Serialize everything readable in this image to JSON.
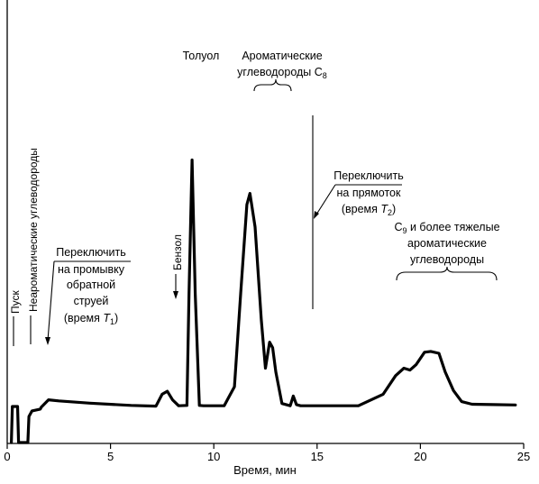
{
  "chart_data": {
    "type": "line",
    "title": "",
    "xlabel": "Время, мин",
    "ylabel": "",
    "xlim": [
      0,
      25
    ],
    "x_ticks": [
      "0",
      "5",
      "10",
      "15",
      "20",
      "25"
    ],
    "grid": false,
    "series": [
      {
        "x": [
          0.2,
          0.25,
          0.5,
          0.55,
          1.0,
          1.05,
          1.2,
          1.6,
          1.65,
          2.0,
          2.5,
          4.0,
          6.0,
          7.2,
          7.5,
          7.75,
          8.0,
          8.3,
          8.7,
          8.8,
          8.95,
          9.1,
          9.3,
          9.5,
          10.5,
          11.0,
          11.3,
          11.6,
          11.75,
          12.0,
          12.3,
          12.5,
          12.7,
          12.85,
          13.0,
          13.3,
          13.7,
          13.85,
          14.0,
          14.2,
          15.0,
          17.0,
          18.2,
          18.8,
          19.2,
          19.5,
          19.8,
          20.2,
          20.5,
          20.9,
          21.2,
          21.6,
          22.0,
          22.5,
          23.5,
          24.6
        ],
        "y": [
          0,
          9.7,
          9.7,
          0,
          0,
          7,
          8.5,
          9,
          9.5,
          11.5,
          11.2,
          10.6,
          10,
          9.8,
          13,
          13.8,
          11.5,
          9.9,
          10,
          40,
          76,
          40,
          10,
          9.9,
          9.9,
          15,
          40,
          64,
          67,
          58,
          33,
          20,
          27,
          25.5,
          19,
          10.5,
          9.9,
          12.5,
          10.2,
          9.9,
          9.9,
          9.9,
          13,
          18,
          20,
          19.5,
          21,
          24.3,
          24.5,
          24,
          19,
          14,
          11,
          10.3,
          10.2,
          10.1
        ]
      }
    ],
    "annotations": {
      "start": "Пуск",
      "nonaromatic": "Неароматические углеводороды",
      "switch_back": [
        "Переключить",
        "на промывку",
        "обратной",
        "струей",
        "(время ",
        "T",
        "1",
        ")"
      ],
      "benzene": "Бензол",
      "toluene": "Толуол",
      "c8": [
        "Ароматические",
        "углеводороды C",
        "8"
      ],
      "switch_forward": [
        "Переключить",
        "на прямоток",
        "(время ",
        "T",
        "2",
        ")"
      ],
      "c9": [
        "C",
        "9",
        " и более тяжелые",
        "ароматические",
        "углеводороды"
      ]
    }
  }
}
